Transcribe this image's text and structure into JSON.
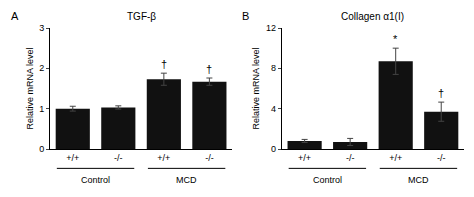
{
  "chart_data": [
    {
      "type": "bar",
      "label": "A",
      "title": "TGF-β",
      "ylabel": "Relative mRNA level",
      "categories": [
        "+/+",
        "-/-",
        "+/+",
        "-/-"
      ],
      "groups": [
        "Control",
        "MCD"
      ],
      "values": [
        1.0,
        1.03,
        1.73,
        1.67
      ],
      "errors": [
        0.06,
        0.04,
        0.15,
        0.09
      ],
      "significance": [
        null,
        null,
        "†",
        "†"
      ],
      "color": "#111111",
      "ylim": [
        0,
        3
      ],
      "yticks": [
        0,
        1,
        2,
        3
      ],
      "grid": false
    },
    {
      "type": "bar",
      "label": "B",
      "title": "Collagen α1(I)",
      "ylabel": "Relative mRNA level",
      "categories": [
        "+/+",
        "-/-",
        "+/+",
        "-/-"
      ],
      "groups": [
        "Control",
        "MCD"
      ],
      "values": [
        0.8,
        0.7,
        8.7,
        3.7
      ],
      "errors": [
        0.15,
        0.35,
        1.3,
        0.95
      ],
      "significance": [
        null,
        null,
        "*",
        "†"
      ],
      "color": "#111111",
      "ylim": [
        0,
        12
      ],
      "yticks": [
        0,
        4,
        8,
        12
      ],
      "grid": false
    }
  ]
}
